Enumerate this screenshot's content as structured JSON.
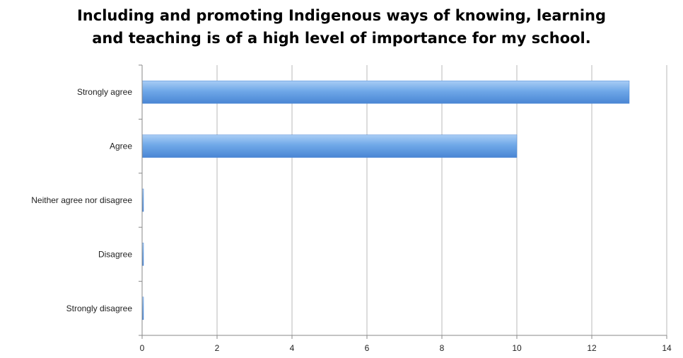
{
  "chart_data": {
    "type": "bar",
    "orientation": "horizontal",
    "title": "Including and promoting Indigenous ways of knowing, learning and teaching is of a high level of importance for my school.",
    "title_lines": [
      "Including and promoting Indigenous ways of knowing, learning",
      "and teaching is of a high level of importance for my school."
    ],
    "categories": [
      "Strongly agree",
      "Agree",
      "Neither agree nor disagree",
      "Disagree",
      "Strongly disagree"
    ],
    "values": [
      13,
      10,
      0,
      0,
      0
    ],
    "xlim": [
      0,
      14
    ],
    "x_ticks": [
      "0",
      "2",
      "4",
      "6",
      "8",
      "10",
      "12",
      "14"
    ],
    "xlabel": "",
    "ylabel": "",
    "grid": "vertical",
    "legend": "none",
    "bar_color": "#6fa8e8",
    "bar_color_light": "#a9cdf5",
    "bar_color_dark": "#4a86d4"
  }
}
